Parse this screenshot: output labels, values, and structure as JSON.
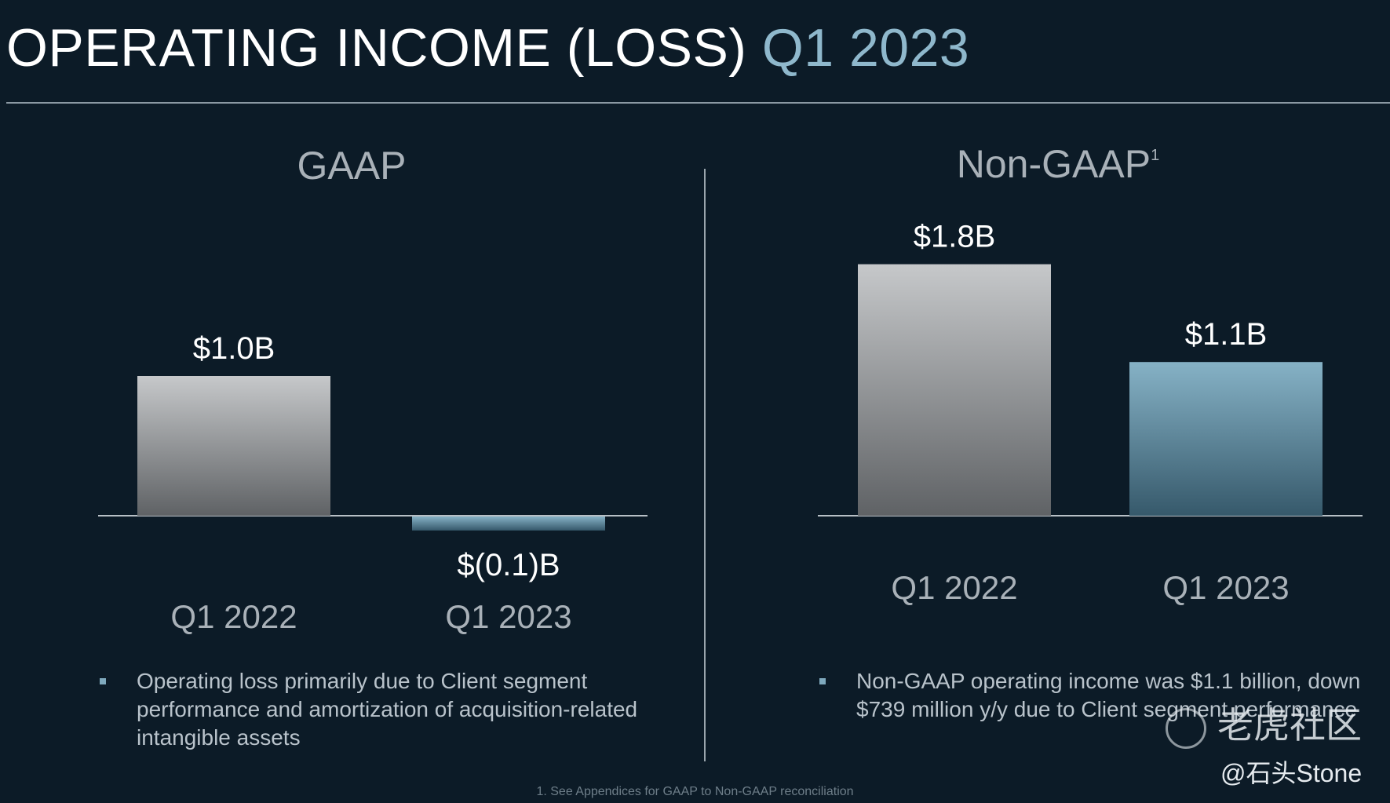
{
  "header": {
    "title_main": "OPERATING INCOME (LOSS)",
    "title_accent": "Q1 2023"
  },
  "chart_data": [
    {
      "type": "bar",
      "title": "GAAP",
      "categories": [
        "Q1 2022",
        "Q1 2023"
      ],
      "values": [
        1.0,
        -0.1
      ],
      "data_labels": [
        "$1.0B",
        "$(0.1)B"
      ],
      "unit": "$B",
      "colors": [
        "#9a9c9e",
        "#5d8ea6"
      ],
      "bullets": [
        "Operating loss primarily due to Client segment performance and amortization of acquisition-related intangible assets"
      ]
    },
    {
      "type": "bar",
      "title": "Non-GAAP",
      "title_sup": "1",
      "categories": [
        "Q1 2022",
        "Q1 2023"
      ],
      "values": [
        1.8,
        1.1
      ],
      "data_labels": [
        "$1.8B",
        "$1.1B"
      ],
      "unit": "$B",
      "colors": [
        "#9a9c9e",
        "#5d8ea6"
      ],
      "bullets": [
        "Non-GAAP operating income was $1.1 billion, down $739 million y/y due to Client segment performance"
      ]
    }
  ],
  "footnote": "1. See Appendices for GAAP to Non-GAAP reconciliation",
  "watermark": {
    "brand": "老虎社区",
    "handle": "@石头Stone"
  },
  "colors": {
    "background": "#0c1b27",
    "accent": "#8fb8cc",
    "gray_bar": "#9a9c9e",
    "blue_bar": "#5d8ea6"
  }
}
